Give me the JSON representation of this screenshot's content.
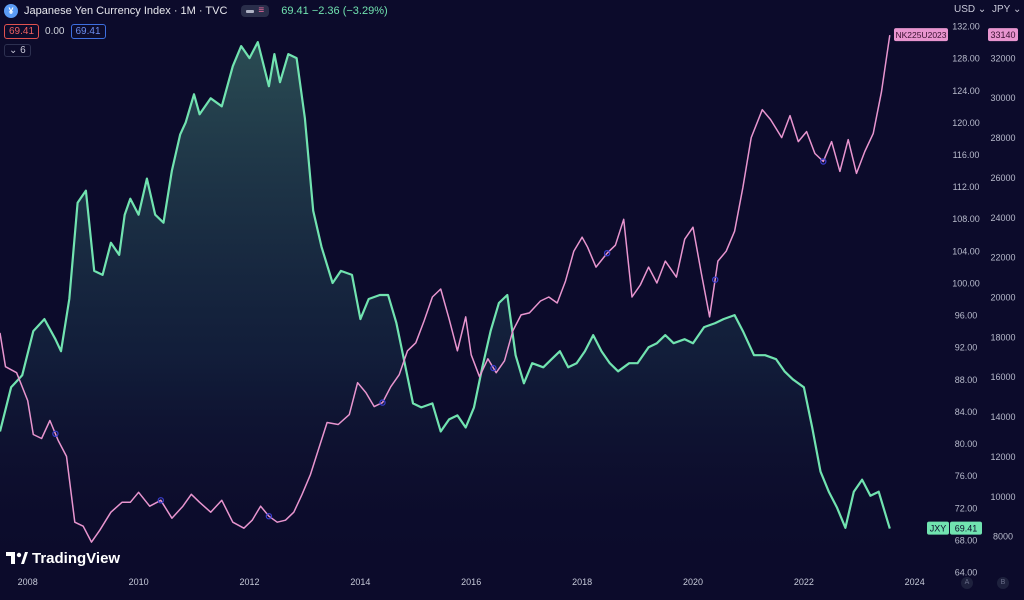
{
  "header": {
    "logo_letter": "¥",
    "title": "Japanese Yen Currency Index · 1M · TVC",
    "quote": "69.41  −2.36 (−3.29%)"
  },
  "trade": {
    "sell": "69.41",
    "spread": "0.00",
    "buy": "69.41"
  },
  "indicators_toggle": "6",
  "currency": {
    "left": "USD",
    "right": "JPY"
  },
  "brand": {
    "name": "TradingView"
  },
  "corner_buttons": [
    "A",
    "B"
  ],
  "colors": {
    "background": "#0c0b2b",
    "jxy_line": "#71e3b0",
    "nikkei_line": "#e895cf",
    "marker": "#3b3fcf"
  },
  "chart_data": {
    "type": "line",
    "x_ticks": [
      "2008",
      "2010",
      "2012",
      "2014",
      "2016",
      "2018",
      "2020",
      "2022",
      "2024"
    ],
    "xlim": [
      2007.5,
      2024.6
    ],
    "left_axis": {
      "ticks": [
        64,
        68,
        72,
        76,
        80,
        84,
        88,
        92,
        96,
        100,
        104,
        108,
        112,
        116,
        120,
        124,
        128,
        132
      ],
      "ylim": [
        64,
        133
      ]
    },
    "right_axis": {
      "ticks": [
        8000,
        10000,
        12000,
        14000,
        16000,
        18000,
        20000,
        22000,
        24000,
        26000,
        28000,
        30000,
        32000
      ],
      "ylim": [
        6200,
        34000
      ]
    },
    "series": [
      {
        "name": "JXY",
        "axis": "left",
        "last_label": "69.41",
        "area_fill": true,
        "points": [
          [
            2007.5,
            81.5
          ],
          [
            2007.7,
            87
          ],
          [
            2007.9,
            88.5
          ],
          [
            2008.1,
            94
          ],
          [
            2008.3,
            95.5
          ],
          [
            2008.5,
            93
          ],
          [
            2008.6,
            91.5
          ],
          [
            2008.75,
            98
          ],
          [
            2008.9,
            110
          ],
          [
            2009.05,
            111.5
          ],
          [
            2009.2,
            101.5
          ],
          [
            2009.35,
            101
          ],
          [
            2009.5,
            105
          ],
          [
            2009.65,
            103.5
          ],
          [
            2009.75,
            108.5
          ],
          [
            2009.85,
            110.5
          ],
          [
            2010.0,
            108.5
          ],
          [
            2010.15,
            113
          ],
          [
            2010.3,
            108.5
          ],
          [
            2010.45,
            107.5
          ],
          [
            2010.6,
            114
          ],
          [
            2010.75,
            118.5
          ],
          [
            2010.85,
            120
          ],
          [
            2011.0,
            123.5
          ],
          [
            2011.1,
            121
          ],
          [
            2011.3,
            123
          ],
          [
            2011.5,
            122
          ],
          [
            2011.7,
            127
          ],
          [
            2011.85,
            129.5
          ],
          [
            2012.0,
            128
          ],
          [
            2012.15,
            130
          ],
          [
            2012.35,
            124.5
          ],
          [
            2012.45,
            128.5
          ],
          [
            2012.55,
            125
          ],
          [
            2012.7,
            128.5
          ],
          [
            2012.85,
            128
          ],
          [
            2013.0,
            120.5
          ],
          [
            2013.15,
            109
          ],
          [
            2013.3,
            104.5
          ],
          [
            2013.5,
            100
          ],
          [
            2013.65,
            101.5
          ],
          [
            2013.85,
            101
          ],
          [
            2014.0,
            95.5
          ],
          [
            2014.15,
            98
          ],
          [
            2014.35,
            98.5
          ],
          [
            2014.5,
            98.5
          ],
          [
            2014.65,
            95
          ],
          [
            2014.8,
            90
          ],
          [
            2014.95,
            85
          ],
          [
            2015.1,
            84.5
          ],
          [
            2015.3,
            85
          ],
          [
            2015.45,
            81.5
          ],
          [
            2015.6,
            83
          ],
          [
            2015.75,
            83.5
          ],
          [
            2015.9,
            82
          ],
          [
            2016.05,
            84.5
          ],
          [
            2016.2,
            89.5
          ],
          [
            2016.35,
            94
          ],
          [
            2016.5,
            97.5
          ],
          [
            2016.65,
            98.5
          ],
          [
            2016.8,
            91
          ],
          [
            2016.95,
            87.5
          ],
          [
            2017.1,
            90
          ],
          [
            2017.3,
            89.5
          ],
          [
            2017.45,
            90.5
          ],
          [
            2017.6,
            91.5
          ],
          [
            2017.75,
            89.5
          ],
          [
            2017.9,
            90
          ],
          [
            2018.05,
            91.5
          ],
          [
            2018.2,
            93.5
          ],
          [
            2018.35,
            91.5
          ],
          [
            2018.5,
            90
          ],
          [
            2018.65,
            89
          ],
          [
            2018.85,
            90
          ],
          [
            2019.0,
            90
          ],
          [
            2019.2,
            92
          ],
          [
            2019.35,
            92.5
          ],
          [
            2019.5,
            93.5
          ],
          [
            2019.65,
            92.5
          ],
          [
            2019.85,
            93
          ],
          [
            2020.0,
            92.5
          ],
          [
            2020.2,
            94.5
          ],
          [
            2020.4,
            95
          ],
          [
            2020.55,
            95.5
          ],
          [
            2020.75,
            96
          ],
          [
            2020.9,
            94
          ],
          [
            2021.1,
            91
          ],
          [
            2021.3,
            91
          ],
          [
            2021.5,
            90.5
          ],
          [
            2021.65,
            89
          ],
          [
            2021.8,
            88
          ],
          [
            2022.0,
            87
          ],
          [
            2022.15,
            82
          ],
          [
            2022.3,
            76.5
          ],
          [
            2022.45,
            74
          ],
          [
            2022.6,
            72
          ],
          [
            2022.75,
            69.5
          ],
          [
            2022.9,
            74
          ],
          [
            2023.05,
            75.5
          ],
          [
            2023.2,
            73.5
          ],
          [
            2023.35,
            74
          ],
          [
            2023.55,
            69.41
          ]
        ]
      },
      {
        "name": "NK225U2023",
        "axis": "right",
        "last_label": "33140",
        "area_fill": false,
        "points": [
          [
            2007.5,
            18200
          ],
          [
            2007.6,
            16500
          ],
          [
            2007.8,
            16200
          ],
          [
            2008.0,
            14800
          ],
          [
            2008.1,
            13100
          ],
          [
            2008.25,
            12900
          ],
          [
            2008.4,
            13800
          ],
          [
            2008.55,
            12800
          ],
          [
            2008.7,
            12000
          ],
          [
            2008.85,
            8700
          ],
          [
            2009.0,
            8500
          ],
          [
            2009.15,
            7700
          ],
          [
            2009.3,
            8300
          ],
          [
            2009.5,
            9200
          ],
          [
            2009.7,
            9700
          ],
          [
            2009.85,
            9700
          ],
          [
            2010.0,
            10200
          ],
          [
            2010.2,
            9500
          ],
          [
            2010.4,
            9800
          ],
          [
            2010.6,
            8900
          ],
          [
            2010.8,
            9500
          ],
          [
            2010.95,
            10100
          ],
          [
            2011.1,
            9700
          ],
          [
            2011.3,
            9200
          ],
          [
            2011.5,
            9800
          ],
          [
            2011.7,
            8700
          ],
          [
            2011.9,
            8400
          ],
          [
            2012.05,
            8800
          ],
          [
            2012.2,
            9500
          ],
          [
            2012.35,
            9000
          ],
          [
            2012.5,
            8700
          ],
          [
            2012.65,
            8800
          ],
          [
            2012.8,
            9200
          ],
          [
            2012.95,
            10100
          ],
          [
            2013.1,
            11100
          ],
          [
            2013.25,
            12400
          ],
          [
            2013.4,
            13700
          ],
          [
            2013.6,
            13600
          ],
          [
            2013.8,
            14100
          ],
          [
            2013.95,
            15700
          ],
          [
            2014.1,
            15200
          ],
          [
            2014.25,
            14500
          ],
          [
            2014.4,
            14700
          ],
          [
            2014.55,
            15500
          ],
          [
            2014.7,
            16100
          ],
          [
            2014.85,
            17300
          ],
          [
            2015.0,
            17700
          ],
          [
            2015.15,
            18800
          ],
          [
            2015.3,
            20000
          ],
          [
            2015.45,
            20400
          ],
          [
            2015.6,
            18900
          ],
          [
            2015.75,
            17300
          ],
          [
            2015.9,
            19000
          ],
          [
            2016.0,
            17100
          ],
          [
            2016.15,
            16000
          ],
          [
            2016.3,
            16900
          ],
          [
            2016.45,
            16200
          ],
          [
            2016.6,
            16800
          ],
          [
            2016.75,
            18300
          ],
          [
            2016.9,
            19100
          ],
          [
            2017.05,
            19200
          ],
          [
            2017.25,
            19800
          ],
          [
            2017.4,
            20000
          ],
          [
            2017.55,
            19700
          ],
          [
            2017.7,
            20800
          ],
          [
            2017.85,
            22300
          ],
          [
            2018.0,
            23000
          ],
          [
            2018.1,
            22500
          ],
          [
            2018.25,
            21500
          ],
          [
            2018.45,
            22200
          ],
          [
            2018.6,
            22600
          ],
          [
            2018.75,
            23900
          ],
          [
            2018.9,
            20000
          ],
          [
            2019.05,
            20600
          ],
          [
            2019.2,
            21500
          ],
          [
            2019.35,
            20700
          ],
          [
            2019.5,
            21800
          ],
          [
            2019.7,
            21000
          ],
          [
            2019.85,
            22900
          ],
          [
            2020.0,
            23500
          ],
          [
            2020.15,
            21200
          ],
          [
            2020.3,
            19000
          ],
          [
            2020.45,
            21800
          ],
          [
            2020.6,
            22300
          ],
          [
            2020.75,
            23300
          ],
          [
            2020.9,
            25500
          ],
          [
            2021.05,
            28000
          ],
          [
            2021.25,
            29400
          ],
          [
            2021.4,
            28900
          ],
          [
            2021.6,
            28000
          ],
          [
            2021.75,
            29100
          ],
          [
            2021.9,
            27800
          ],
          [
            2022.05,
            28300
          ],
          [
            2022.2,
            27200
          ],
          [
            2022.35,
            26800
          ],
          [
            2022.5,
            27800
          ],
          [
            2022.65,
            26300
          ],
          [
            2022.8,
            27900
          ],
          [
            2022.95,
            26200
          ],
          [
            2023.1,
            27300
          ],
          [
            2023.25,
            28200
          ],
          [
            2023.4,
            30300
          ],
          [
            2023.55,
            33140
          ]
        ]
      }
    ],
    "markers": [
      {
        "series": "NK225U2023",
        "x": 2008.5
      },
      {
        "series": "NK225U2023",
        "x": 2010.4
      },
      {
        "series": "NK225U2023",
        "x": 2012.35
      },
      {
        "series": "NK225U2023",
        "x": 2014.4
      },
      {
        "series": "NK225U2023",
        "x": 2016.4
      },
      {
        "series": "NK225U2023",
        "x": 2018.45
      },
      {
        "series": "NK225U2023",
        "x": 2020.4
      },
      {
        "series": "NK225U2023",
        "x": 2022.35
      }
    ]
  }
}
